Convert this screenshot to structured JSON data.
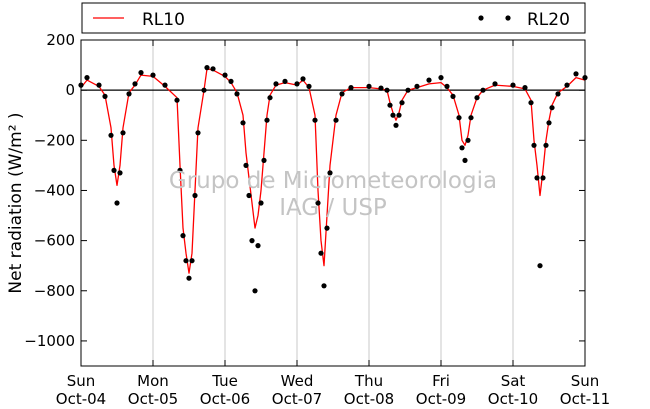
{
  "chart_data": {
    "type": "line",
    "title": "",
    "xlabel": "",
    "ylabel": "Net radiation (W/m² )",
    "ylim": [
      -1100,
      200
    ],
    "yticks": [
      200,
      0,
      -200,
      -400,
      -600,
      -800,
      -1000
    ],
    "ytick_labels": [
      "200",
      "0",
      "−200",
      "−400",
      "−600",
      "−800",
      "−1000"
    ],
    "xlim": [
      "2009-10-04",
      "2009-10-11"
    ],
    "x_ticks": [
      {
        "day": "Sun",
        "date": "Oct-04"
      },
      {
        "day": "Mon",
        "date": "Oct-05"
      },
      {
        "day": "Tue",
        "date": "Oct-06"
      },
      {
        "day": "Wed",
        "date": "Oct-07"
      },
      {
        "day": "Thu",
        "date": "Oct-08"
      },
      {
        "day": "Fri",
        "date": "Oct-09"
      },
      {
        "day": "Sat",
        "date": "Oct-10"
      },
      {
        "day": "Sun",
        "date": "Oct-11"
      }
    ],
    "grid": "vertical",
    "zero_line": true,
    "legend": {
      "placement": "top",
      "entries": [
        "RL10",
        "RL20"
      ]
    },
    "watermark": [
      "Grupo de Micrometeorologia",
      "IAG / USP"
    ],
    "series": [
      {
        "name": "RL10",
        "style": "line",
        "color": "#ff0000",
        "points": [
          [
            "2009-10-04 00:00",
            10
          ],
          [
            "2009-10-04 02:00",
            40
          ],
          [
            "2009-10-04 06:00",
            15
          ],
          [
            "2009-10-04 08:00",
            -20
          ],
          [
            "2009-10-04 10:00",
            -150
          ],
          [
            "2009-10-04 11:00",
            -300
          ],
          [
            "2009-10-04 12:00",
            -380
          ],
          [
            "2009-10-04 13:00",
            -300
          ],
          [
            "2009-10-04 14:00",
            -150
          ],
          [
            "2009-10-04 16:00",
            -10
          ],
          [
            "2009-10-04 18:00",
            20
          ],
          [
            "2009-10-04 20:00",
            60
          ],
          [
            "2009-10-05 00:00",
            55
          ],
          [
            "2009-10-05 04:00",
            15
          ],
          [
            "2009-10-05 08:00",
            -30
          ],
          [
            "2009-10-05 09:00",
            -300
          ],
          [
            "2009-10-05 10:00",
            -550
          ],
          [
            "2009-10-05 11:00",
            -650
          ],
          [
            "2009-10-05 12:00",
            -730
          ],
          [
            "2009-10-05 13:00",
            -650
          ],
          [
            "2009-10-05 14:00",
            -400
          ],
          [
            "2009-10-05 15:00",
            -150
          ],
          [
            "2009-10-05 17:00",
            0
          ],
          [
            "2009-10-05 18:00",
            85
          ],
          [
            "2009-10-05 20:00",
            80
          ],
          [
            "2009-10-06 00:00",
            55
          ],
          [
            "2009-10-06 02:00",
            30
          ],
          [
            "2009-10-06 04:00",
            -10
          ],
          [
            "2009-10-06 06:00",
            -100
          ],
          [
            "2009-10-06 07:00",
            -250
          ],
          [
            "2009-10-06 08:00",
            -350
          ],
          [
            "2009-10-06 09:00",
            -450
          ],
          [
            "2009-10-06 10:00",
            -550
          ],
          [
            "2009-10-06 11:00",
            -500
          ],
          [
            "2009-10-06 12:00",
            -400
          ],
          [
            "2009-10-06 13:00",
            -250
          ],
          [
            "2009-10-06 14:00",
            -100
          ],
          [
            "2009-10-06 15:00",
            -20
          ],
          [
            "2009-10-06 17:00",
            20
          ],
          [
            "2009-10-06 20:00",
            30
          ],
          [
            "2009-10-07 00:00",
            20
          ],
          [
            "2009-10-07 02:00",
            40
          ],
          [
            "2009-10-07 04:00",
            10
          ],
          [
            "2009-10-07 06:00",
            -100
          ],
          [
            "2009-10-07 07:00",
            -400
          ],
          [
            "2009-10-07 08:00",
            -600
          ],
          [
            "2009-10-07 09:00",
            -700
          ],
          [
            "2009-10-07 10:00",
            -500
          ],
          [
            "2009-10-07 11:00",
            -300
          ],
          [
            "2009-10-07 13:00",
            -100
          ],
          [
            "2009-10-07 15:00",
            -10
          ],
          [
            "2009-10-07 18:00",
            10
          ],
          [
            "2009-10-08 00:00",
            10
          ],
          [
            "2009-10-08 04:00",
            5
          ],
          [
            "2009-10-08 06:00",
            0
          ],
          [
            "2009-10-08 07:00",
            -50
          ],
          [
            "2009-10-08 08:00",
            -90
          ],
          [
            "2009-10-08 09:00",
            -120
          ],
          [
            "2009-10-08 10:00",
            -90
          ],
          [
            "2009-10-08 11:00",
            -40
          ],
          [
            "2009-10-08 13:00",
            0
          ],
          [
            "2009-10-08 16:00",
            10
          ],
          [
            "2009-10-08 20:00",
            25
          ],
          [
            "2009-10-09 00:00",
            30
          ],
          [
            "2009-10-09 02:00",
            10
          ],
          [
            "2009-10-09 04:00",
            -20
          ],
          [
            "2009-10-09 06:00",
            -100
          ],
          [
            "2009-10-09 07:00",
            -200
          ],
          [
            "2009-10-09 08:00",
            -220
          ],
          [
            "2009-10-09 09:00",
            -180
          ],
          [
            "2009-10-09 10:00",
            -100
          ],
          [
            "2009-10-09 12:00",
            -30
          ],
          [
            "2009-10-09 14:00",
            0
          ],
          [
            "2009-10-09 18:00",
            20
          ],
          [
            "2009-10-10 00:00",
            15
          ],
          [
            "2009-10-10 04:00",
            5
          ],
          [
            "2009-10-10 06:00",
            -40
          ],
          [
            "2009-10-10 07:00",
            -200
          ],
          [
            "2009-10-10 08:00",
            -300
          ],
          [
            "2009-10-10 09:00",
            -420
          ],
          [
            "2009-10-10 10:00",
            -320
          ],
          [
            "2009-10-10 11:00",
            -200
          ],
          [
            "2009-10-10 12:00",
            -120
          ],
          [
            "2009-10-10 13:00",
            -60
          ],
          [
            "2009-10-10 15:00",
            -10
          ],
          [
            "2009-10-10 18:00",
            15
          ],
          [
            "2009-10-10 21:00",
            50
          ],
          [
            "2009-10-11 00:00",
            40
          ]
        ]
      },
      {
        "name": "RL20",
        "style": "markers",
        "color": "#000000",
        "points": [
          [
            "2009-10-04 00:00",
            20
          ],
          [
            "2009-10-04 02:00",
            50
          ],
          [
            "2009-10-04 06:00",
            20
          ],
          [
            "2009-10-04 08:00",
            -25
          ],
          [
            "2009-10-04 10:00",
            -180
          ],
          [
            "2009-10-04 11:00",
            -320
          ],
          [
            "2009-10-04 12:00",
            -450
          ],
          [
            "2009-10-04 13:00",
            -330
          ],
          [
            "2009-10-04 14:00",
            -170
          ],
          [
            "2009-10-04 16:00",
            -15
          ],
          [
            "2009-10-04 18:00",
            25
          ],
          [
            "2009-10-04 20:00",
            70
          ],
          [
            "2009-10-05 00:00",
            60
          ],
          [
            "2009-10-05 04:00",
            20
          ],
          [
            "2009-10-05 08:00",
            -40
          ],
          [
            "2009-10-05 09:00",
            -320
          ],
          [
            "2009-10-05 10:00",
            -580
          ],
          [
            "2009-10-05 11:00",
            -680
          ],
          [
            "2009-10-05 12:00",
            -750
          ],
          [
            "2009-10-05 13:00",
            -680
          ],
          [
            "2009-10-05 14:00",
            -420
          ],
          [
            "2009-10-05 15:00",
            -170
          ],
          [
            "2009-10-05 17:00",
            0
          ],
          [
            "2009-10-05 18:00",
            90
          ],
          [
            "2009-10-05 20:00",
            85
          ],
          [
            "2009-10-06 00:00",
            60
          ],
          [
            "2009-10-06 02:00",
            35
          ],
          [
            "2009-10-06 04:00",
            -15
          ],
          [
            "2009-10-06 06:00",
            -130
          ],
          [
            "2009-10-06 07:00",
            -300
          ],
          [
            "2009-10-06 08:00",
            -420
          ],
          [
            "2009-10-06 09:00",
            -600
          ],
          [
            "2009-10-06 10:00",
            -800
          ],
          [
            "2009-10-06 11:00",
            -620
          ],
          [
            "2009-10-06 12:00",
            -450
          ],
          [
            "2009-10-06 13:00",
            -280
          ],
          [
            "2009-10-06 14:00",
            -120
          ],
          [
            "2009-10-06 15:00",
            -30
          ],
          [
            "2009-10-06 17:00",
            25
          ],
          [
            "2009-10-06 20:00",
            35
          ],
          [
            "2009-10-07 00:00",
            25
          ],
          [
            "2009-10-07 02:00",
            45
          ],
          [
            "2009-10-07 04:00",
            15
          ],
          [
            "2009-10-07 06:00",
            -120
          ],
          [
            "2009-10-07 07:00",
            -450
          ],
          [
            "2009-10-07 08:00",
            -650
          ],
          [
            "2009-10-07 09:00",
            -780
          ],
          [
            "2009-10-07 10:00",
            -550
          ],
          [
            "2009-10-07 11:00",
            -330
          ],
          [
            "2009-10-07 13:00",
            -120
          ],
          [
            "2009-10-07 15:00",
            -15
          ],
          [
            "2009-10-07 18:00",
            10
          ],
          [
            "2009-10-08 00:00",
            15
          ],
          [
            "2009-10-08 04:00",
            8
          ],
          [
            "2009-10-08 06:00",
            0
          ],
          [
            "2009-10-08 07:00",
            -60
          ],
          [
            "2009-10-08 08:00",
            -100
          ],
          [
            "2009-10-08 09:00",
            -140
          ],
          [
            "2009-10-08 10:00",
            -100
          ],
          [
            "2009-10-08 11:00",
            -50
          ],
          [
            "2009-10-08 13:00",
            0
          ],
          [
            "2009-10-08 16:00",
            15
          ],
          [
            "2009-10-08 20:00",
            40
          ],
          [
            "2009-10-09 00:00",
            50
          ],
          [
            "2009-10-09 02:00",
            15
          ],
          [
            "2009-10-09 04:00",
            -25
          ],
          [
            "2009-10-09 06:00",
            -110
          ],
          [
            "2009-10-09 07:00",
            -230
          ],
          [
            "2009-10-09 08:00",
            -280
          ],
          [
            "2009-10-09 09:00",
            -200
          ],
          [
            "2009-10-09 10:00",
            -110
          ],
          [
            "2009-10-09 12:00",
            -30
          ],
          [
            "2009-10-09 14:00",
            0
          ],
          [
            "2009-10-09 18:00",
            25
          ],
          [
            "2009-10-10 00:00",
            20
          ],
          [
            "2009-10-10 04:00",
            10
          ],
          [
            "2009-10-10 06:00",
            -50
          ],
          [
            "2009-10-10 07:00",
            -220
          ],
          [
            "2009-10-10 08:00",
            -350
          ],
          [
            "2009-10-10 09:00",
            -700
          ],
          [
            "2009-10-10 10:00",
            -350
          ],
          [
            "2009-10-10 11:00",
            -220
          ],
          [
            "2009-10-10 12:00",
            -130
          ],
          [
            "2009-10-10 13:00",
            -70
          ],
          [
            "2009-10-10 15:00",
            -15
          ],
          [
            "2009-10-10 18:00",
            20
          ],
          [
            "2009-10-10 21:00",
            65
          ],
          [
            "2009-10-11 00:00",
            50
          ]
        ]
      }
    ]
  }
}
